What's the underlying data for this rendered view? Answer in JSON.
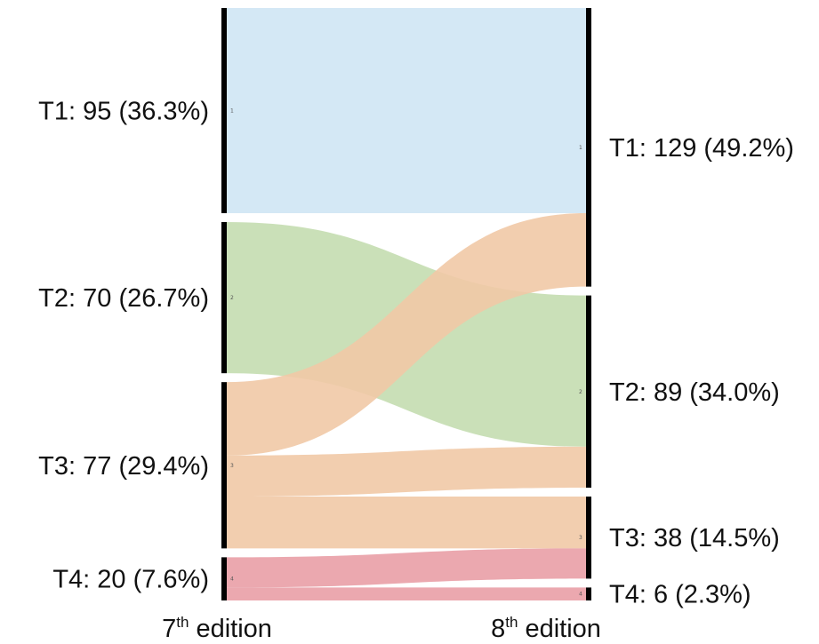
{
  "chart_data": {
    "type": "sankey",
    "source_axis_label": {
      "main": "7",
      "sup": "th",
      "rest": " edition"
    },
    "target_axis_label": {
      "main": "8",
      "sup": "th",
      "rest": " edition"
    },
    "source_nodes": [
      {
        "id": "T1",
        "label": "T1: 95 (36.3%)",
        "value": 95,
        "marker": "1"
      },
      {
        "id": "T2",
        "label": "T2: 70 (26.7%)",
        "value": 70,
        "marker": "2"
      },
      {
        "id": "T3",
        "label": "T3: 77 (29.4%)",
        "value": 77,
        "marker": "3"
      },
      {
        "id": "T4",
        "label": "T4: 20 (7.6%)",
        "value": 20,
        "marker": "4"
      }
    ],
    "target_nodes": [
      {
        "id": "T1",
        "label": "T1: 129 (49.2%)",
        "value": 129,
        "marker": "1"
      },
      {
        "id": "T2",
        "label": "T2: 89 (34.0%)",
        "value": 89,
        "marker": "2"
      },
      {
        "id": "T3",
        "label": "T3: 38 (14.5%)",
        "value": 38,
        "marker": "3"
      },
      {
        "id": "T4",
        "label": "T4: 6 (2.3%)",
        "value": 6,
        "marker": "4"
      }
    ],
    "flows": [
      {
        "from": "T1",
        "to": "T1",
        "value": 95,
        "color": "#cfe6f4"
      },
      {
        "from": "T2",
        "to": "T2",
        "value": 70,
        "color": "#c4ddb0"
      },
      {
        "from": "T3",
        "to": "T1",
        "value": 34,
        "color": "#f1c9a6"
      },
      {
        "from": "T3",
        "to": "T2",
        "value": 19,
        "color": "#f1c9a6"
      },
      {
        "from": "T3",
        "to": "T3",
        "value": 24,
        "color": "#f1c9a6"
      },
      {
        "from": "T4",
        "to": "T3",
        "value": 14,
        "color": "#e99fa6"
      },
      {
        "from": "T4",
        "to": "T4",
        "value": 6,
        "color": "#e99fa6"
      }
    ],
    "node_bar_color": "#000000"
  }
}
